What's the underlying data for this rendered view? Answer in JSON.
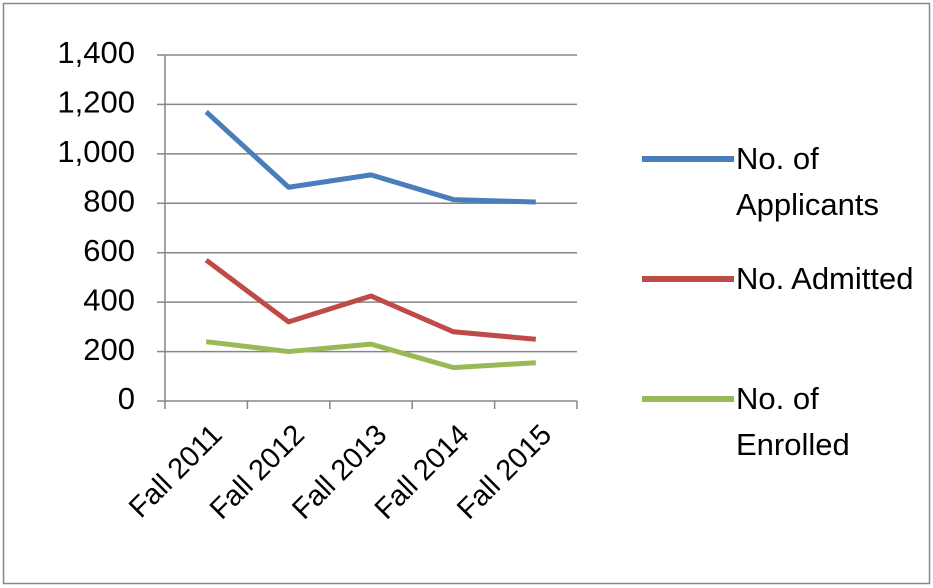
{
  "chart_data": {
    "type": "line",
    "categories": [
      "Fall 2011",
      "Fall 2012",
      "Fall 2013",
      "Fall 2014",
      "Fall 2015"
    ],
    "series": [
      {
        "name": "No. of Applicants",
        "color": "#4a7ebb",
        "values": [
          1170,
          865,
          915,
          815,
          805
        ]
      },
      {
        "name": "No. Admitted",
        "color": "#be4b48",
        "values": [
          570,
          320,
          425,
          280,
          250
        ]
      },
      {
        "name": "No. of Enrolled",
        "color": "#98b954",
        "values": [
          240,
          200,
          230,
          135,
          155
        ]
      }
    ],
    "ylim": [
      0,
      1400
    ],
    "yticks": [
      0,
      200,
      400,
      600,
      800,
      {
        "value": 1000,
        "label": "1,000"
      },
      {
        "value": 1200,
        "label": "1,200"
      },
      {
        "value": 1400,
        "label": "1,400"
      }
    ],
    "grid": true,
    "legend": "right"
  }
}
